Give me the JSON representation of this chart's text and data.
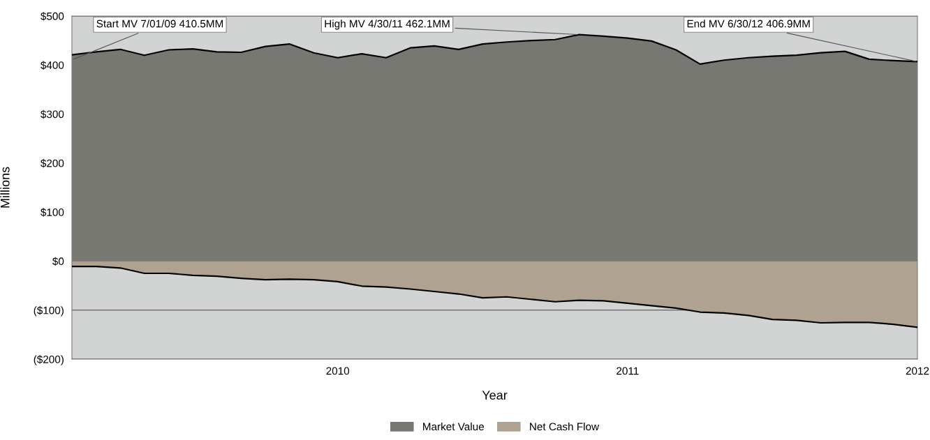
{
  "chart_data": {
    "type": "area",
    "xlabel": "Year",
    "ylabel": "Millions",
    "x": [
      2009.083,
      2009.167,
      2009.25,
      2009.333,
      2009.417,
      2009.5,
      2009.583,
      2009.667,
      2009.75,
      2009.833,
      2009.917,
      2010.0,
      2010.083,
      2010.167,
      2010.25,
      2010.333,
      2010.417,
      2010.5,
      2010.583,
      2010.667,
      2010.75,
      2010.833,
      2010.917,
      2011.0,
      2011.083,
      2011.167,
      2011.25,
      2011.333,
      2011.417,
      2011.5,
      2011.583,
      2011.667,
      2011.75,
      2011.833,
      2011.917,
      2012.0
    ],
    "series": [
      {
        "name": "Market Value",
        "color": "#787873",
        "values": [
          421,
          427,
          432,
          420,
          431,
          433,
          427,
          426,
          438,
          443,
          425,
          415,
          423,
          415,
          435,
          439,
          432,
          443,
          447,
          450,
          452,
          462,
          459,
          455,
          449,
          431,
          402,
          410,
          415,
          418,
          420,
          425,
          428,
          412,
          409,
          407
        ]
      },
      {
        "name": "Net Cash Flow",
        "color": "#afa291",
        "values": [
          -11,
          -11,
          -14,
          -25,
          -25,
          -29,
          -31,
          -35,
          -38,
          -37,
          -38,
          -42,
          -51,
          -53,
          -57,
          -62,
          -67,
          -75,
          -73,
          -78,
          -83,
          -80,
          -81,
          -86,
          -91,
          -96,
          -104,
          -106,
          -111,
          -119,
          -121,
          -126,
          -125,
          -125,
          -129,
          -135
        ]
      }
    ],
    "xlim": [
      2009.083,
      2012.0
    ],
    "xticks": [
      2010,
      2011,
      2012
    ],
    "ylim": [
      -200,
      500
    ],
    "yticks": [
      {
        "value": -200,
        "label": "($200)"
      },
      {
        "value": -100,
        "label": "($100)"
      },
      {
        "value": 0,
        "label": "$0"
      },
      {
        "value": 100,
        "label": "$100"
      },
      {
        "value": 200,
        "label": "$200"
      },
      {
        "value": 300,
        "label": "$300"
      },
      {
        "value": 400,
        "label": "$400"
      },
      {
        "value": 500,
        "label": "$500"
      }
    ],
    "grid": "y",
    "legend": "bottom",
    "annotations": [
      {
        "text": "Start MV 7/01/09 410.5MM",
        "x": 2009.083,
        "y": 410.5
      },
      {
        "text": "High MV 4/30/11 462.1MM",
        "x": 2010.833,
        "y": 462.1
      },
      {
        "text": "End MV 6/30/12 406.9MM",
        "x": 2012.0,
        "y": 406.9
      }
    ]
  }
}
